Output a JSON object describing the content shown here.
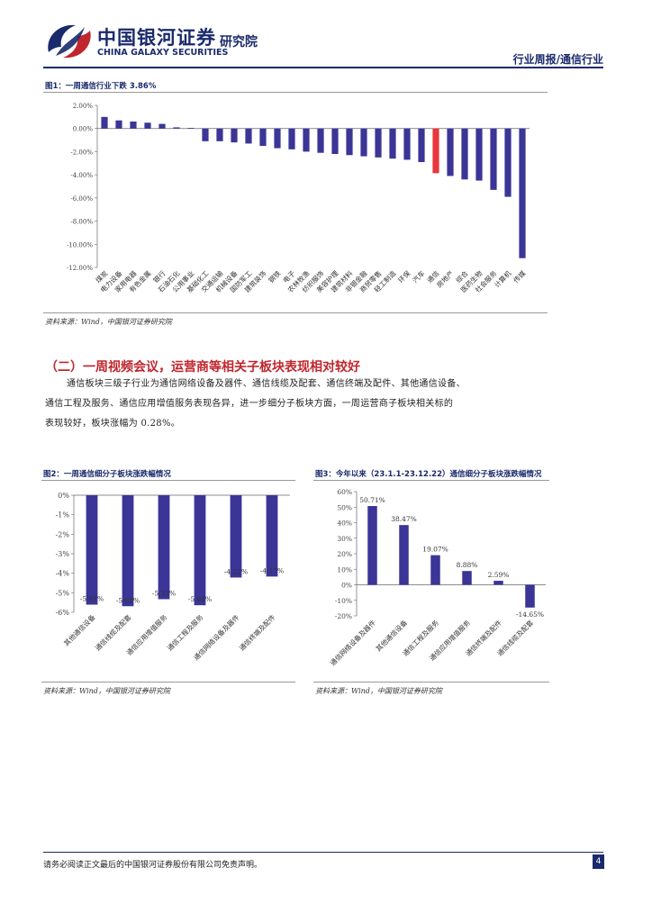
{
  "header": {
    "brand_cn": "中国银河证券",
    "brand_en": "CHINA GALAXY SECURITIES",
    "institute": "研究院",
    "doc_type": "行业周报/通信行业"
  },
  "figure1": {
    "title": "图1：一周通信行业下跌 3.86%",
    "source": "资料来源：Wind，中国银河证券研究院"
  },
  "section2": {
    "heading": "（二）一周视频会议，运营商等相关子板块表现相对较好",
    "para_lines": [
      "通信板块三级子行业为通信网络设备及器件、通信线缆及配套、通信终端及配件、其他通信设备、",
      "通信工程及服务、通信应用增值服务表现各异，进一步细分子板块方面，一周运营商子板块相关标的",
      "表现较好，板块涨幅为 0.28%。"
    ]
  },
  "figure2": {
    "title": "图2：一周通信细分子板块涨跌幅情况",
    "source": "资料来源：Wind，中国银河证券研究院"
  },
  "figure3": {
    "title": "图3：今年以来（23.1.1-23.12.22）通信细分子板块涨跌幅情况",
    "source": "资料来源：Wind，中国银河证券研究院"
  },
  "footer": {
    "disclaimer": "请务必阅读正文最后的中国银河证券股份有限公司免责声明。",
    "page": "4"
  },
  "colors": {
    "bar": "#3b3597",
    "highlight": "#e8383d",
    "brand": "#1a2a6c",
    "heading": "#c0262d"
  },
  "chart_data": [
    {
      "id": "fig1",
      "type": "bar",
      "categories": [
        "煤炭",
        "电力设备",
        "家用电器",
        "有色金属",
        "银行",
        "石油石化",
        "公用事业",
        "基础化工",
        "交通运输",
        "机械设备",
        "国防军工",
        "建筑装饰",
        "钢铁",
        "电子",
        "农林牧渔",
        "纺织服饰",
        "美容护理",
        "建筑材料",
        "非银金融",
        "商贸零售",
        "轻工制造",
        "环保",
        "汽车",
        "通信",
        "房地产",
        "综合",
        "医药生物",
        "社会服务",
        "计算机",
        "传媒"
      ],
      "values": [
        1.0,
        0.7,
        0.6,
        0.5,
        0.4,
        0.1,
        0.05,
        -1.1,
        -1.1,
        -1.2,
        -1.3,
        -1.5,
        -1.7,
        -1.8,
        -2.0,
        -2.1,
        -2.2,
        -2.3,
        -2.4,
        -2.5,
        -2.6,
        -2.7,
        -2.9,
        -3.86,
        -4.1,
        -4.4,
        -4.5,
        -5.3,
        -5.9,
        -11.2
      ],
      "highlight": "通信",
      "yticks": [
        "2.00%",
        "0.00%",
        "-2.00%",
        "-4.00%",
        "-6.00%",
        "-8.00%",
        "-10.00%",
        "-12.00%"
      ],
      "ylim": [
        -12,
        2
      ]
    },
    {
      "id": "fig2",
      "type": "bar",
      "categories": [
        "其他通信设备",
        "通信线缆及配套",
        "通信应用增值服务",
        "通信工程及服务",
        "通信网络设备及器件",
        "通信终端及配件"
      ],
      "values": [
        -5.61,
        -5.69,
        -5.33,
        -5.64,
        -4.22,
        -4.17
      ],
      "value_labels": [
        "-5.61%",
        "-5.69%",
        "-5.33%",
        "-5.64%",
        "-4.22%",
        "-4.17%"
      ],
      "yticks": [
        "0%",
        "-1%",
        "-2%",
        "-3%",
        "-4%",
        "-5%",
        "-6%"
      ],
      "ylim": [
        -6,
        0
      ]
    },
    {
      "id": "fig3",
      "type": "bar",
      "categories": [
        "通信网络设备及器件",
        "其他通信设备",
        "通信工程及服务",
        "通信应用增值服务",
        "通信终端及配件",
        "通信线缆及配套"
      ],
      "values": [
        50.71,
        38.47,
        19.07,
        8.88,
        2.59,
        -14.65
      ],
      "value_labels": [
        "50.71%",
        "38.47%",
        "19.07%",
        "8.88%",
        "2.59%",
        "-14.65%"
      ],
      "yticks": [
        "60%",
        "50%",
        "40%",
        "30%",
        "20%",
        "10%",
        "0%",
        "-10%",
        "-20%"
      ],
      "ylim": [
        -20,
        60
      ]
    }
  ]
}
